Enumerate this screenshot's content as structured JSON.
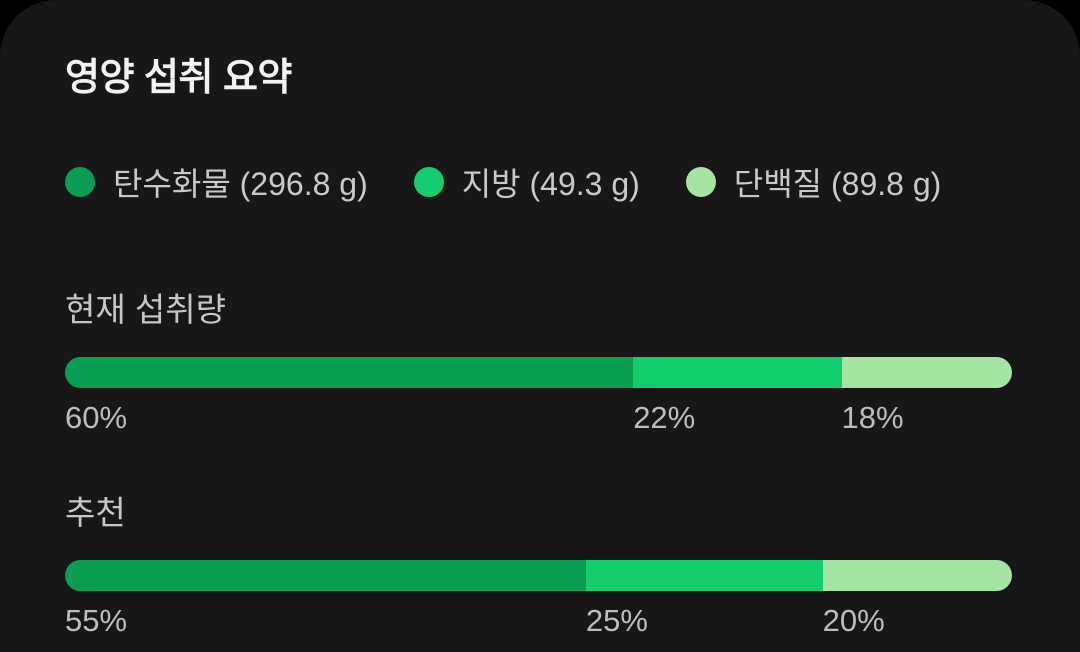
{
  "page_background": "#000000",
  "card": {
    "background": "#171717",
    "title": "영양 섭취 요약",
    "legend": [
      {
        "key": "carbs",
        "label": "탄수화물 (296.8 g)",
        "color": "#0a9e52"
      },
      {
        "key": "fat",
        "label": "지방 (49.3 g)",
        "color": "#14cd6e"
      },
      {
        "key": "protein",
        "label": "단백질 (89.8 g)",
        "color": "#a5e5a2"
      }
    ],
    "sections": [
      {
        "label": "현재 섭취량",
        "segments": [
          {
            "key": "carbs",
            "percent": 60,
            "pct_label": "60%"
          },
          {
            "key": "fat",
            "percent": 22,
            "pct_label": "22%"
          },
          {
            "key": "protein",
            "percent": 18,
            "pct_label": "18%"
          }
        ]
      },
      {
        "label": "추천",
        "segments": [
          {
            "key": "carbs",
            "percent": 55,
            "pct_label": "55%"
          },
          {
            "key": "fat",
            "percent": 25,
            "pct_label": "25%"
          },
          {
            "key": "protein",
            "percent": 20,
            "pct_label": "20%"
          }
        ]
      }
    ]
  },
  "chart_data": {
    "type": "bar",
    "variant": "horizontal-stacked",
    "title": "영양 섭취 요약",
    "categories": [
      "현재 섭취량",
      "추천"
    ],
    "series": [
      {
        "name": "탄수화물",
        "amount_g": 296.8,
        "values": [
          60,
          55
        ],
        "color": "#0a9e52"
      },
      {
        "name": "지방",
        "amount_g": 49.3,
        "values": [
          22,
          25
        ],
        "color": "#14cd6e"
      },
      {
        "name": "단백질",
        "amount_g": 89.8,
        "values": [
          18,
          20
        ],
        "color": "#a5e5a2"
      }
    ],
    "unit": "%",
    "xlim": [
      0,
      100
    ],
    "legend_position": "top",
    "data_labels": "below-segment-start",
    "grid": false
  }
}
